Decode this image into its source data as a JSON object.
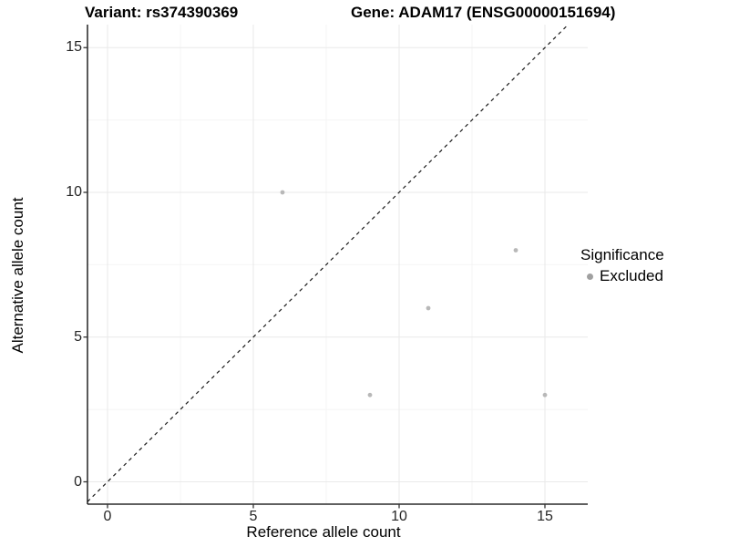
{
  "chart_data": {
    "type": "scatter",
    "title_left": "Variant: rs374390369",
    "title_right": "Gene: ADAM17 (ENSG00000151694)",
    "xlabel": "Reference allele count",
    "ylabel": "Alternative allele count",
    "xlim": [
      -0.75,
      16.5
    ],
    "ylim": [
      -0.8,
      15.85
    ],
    "x_ticks": [
      0,
      5,
      10,
      15
    ],
    "y_ticks": [
      0,
      5,
      10,
      15
    ],
    "x_minor_ticks": [
      2.5,
      7.5,
      12.5
    ],
    "y_minor_ticks": [
      2.5,
      7.5,
      12.5
    ],
    "grid": "major_and_minor",
    "reference_line": {
      "type": "identity y=x",
      "style": "dashed",
      "color": "#1a1a1a"
    },
    "series": [
      {
        "name": "Excluded",
        "marker_color": "#b8b8b8",
        "points": [
          {
            "x": 6,
            "y": 10
          },
          {
            "x": 14,
            "y": 8
          },
          {
            "x": 11,
            "y": 6
          },
          {
            "x": 9,
            "y": 3
          },
          {
            "x": 15,
            "y": 3
          }
        ]
      }
    ],
    "legend": {
      "title": "Significance",
      "position": "right",
      "entries": [
        {
          "label": "Excluded",
          "color": "#a0a0a0"
        }
      ]
    }
  },
  "colors": {
    "background": "#ffffff",
    "axis_line": "#000000",
    "tick_mark": "#333333",
    "grid_major": "#e9e9e9",
    "grid_minor": "#f4f4f4",
    "tick_label": "#262626",
    "point": "#b8b8b8"
  }
}
